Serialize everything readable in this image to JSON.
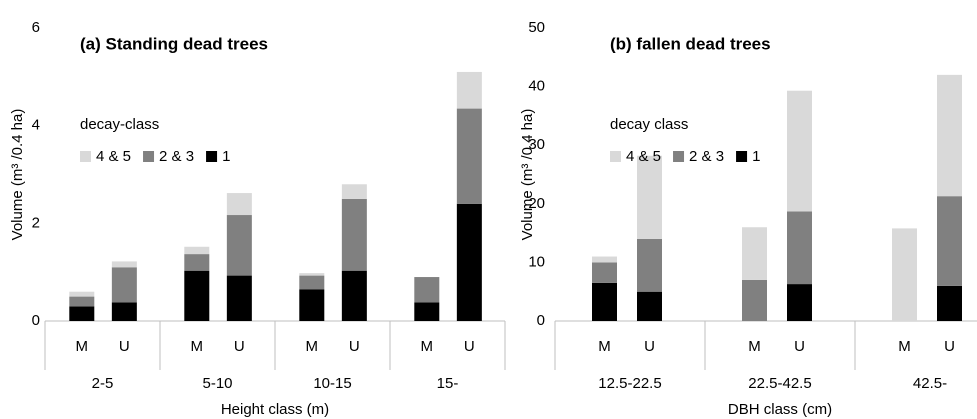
{
  "chart_data": [
    {
      "type": "bar",
      "stacked": true,
      "title": "(a) Standing dead trees",
      "y_label": "Volume (m³ /0.4 ha)",
      "x_label": "Height class (m)",
      "legend_title": "decay-class",
      "groups": [
        "2-5",
        "5-10",
        "10-15",
        "15-"
      ],
      "categories": [
        "M",
        "U",
        "M",
        "U",
        "M",
        "U",
        "M",
        "U"
      ],
      "series": [
        {
          "name": "1",
          "color": "#000000",
          "values": [
            0.3,
            0.38,
            1.03,
            0.93,
            0.65,
            1.03,
            0.38,
            2.4
          ]
        },
        {
          "name": "2 & 3",
          "color": "#808080",
          "values": [
            0.2,
            0.72,
            0.34,
            1.24,
            0.28,
            1.47,
            0.52,
            1.95
          ]
        },
        {
          "name": "4 & 5",
          "color": "#d9d9d9",
          "values": [
            0.1,
            0.12,
            0.15,
            0.45,
            0.05,
            0.3,
            0,
            0.75
          ]
        }
      ],
      "ylim": [
        0,
        6
      ],
      "yticks": [
        0,
        2,
        4,
        6
      ]
    },
    {
      "type": "bar",
      "stacked": true,
      "title": "(b) fallen dead trees",
      "y_label": "Volume (m³ /0.4 ha)",
      "x_label": "DBH class (cm)",
      "legend_title": "decay class",
      "groups": [
        "12.5-22.5",
        "22.5-42.5",
        "42.5-"
      ],
      "categories": [
        "M",
        "U",
        "M",
        "U",
        "M",
        "U"
      ],
      "series": [
        {
          "name": "1",
          "color": "#000000",
          "values": [
            6.5,
            5,
            0,
            6.3,
            0,
            6
          ]
        },
        {
          "name": "2 & 3",
          "color": "#808080",
          "values": [
            3.5,
            9,
            7,
            12.4,
            0,
            15.3
          ]
        },
        {
          "name": "4 & 5",
          "color": "#d9d9d9",
          "values": [
            1,
            14.2,
            9,
            20.6,
            15.8,
            20.7
          ]
        }
      ],
      "ylim": [
        0,
        50
      ],
      "yticks": [
        0,
        10,
        20,
        30,
        40,
        50
      ]
    }
  ]
}
